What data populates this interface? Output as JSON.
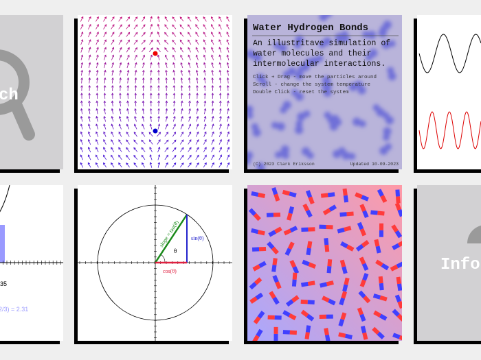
{
  "search_card": {
    "label": "ch"
  },
  "water_card": {
    "title": "Water Hydrogen Bonds",
    "description": [
      "An illustritave simulation of",
      "water molecules and their",
      "intermolecular interactions."
    ],
    "instructions": [
      "Click + Drag - move the particles around",
      "Scroll - change the system temperature",
      "Double Click - reset the system"
    ],
    "copyright": "(C) 2023 Clark Eriksson",
    "updated": "Updated 10-09-2023"
  },
  "integral_card": {
    "lines": [
      "35",
      "2/3) = 2.31"
    ]
  },
  "unit_circle_card": {
    "slope_label": "slope = tan(θ)",
    "sin_label": "sin(θ)",
    "cos_label": "cos(θ)",
    "theta_label": "θ"
  },
  "info_card": {
    "label": "Info"
  }
}
